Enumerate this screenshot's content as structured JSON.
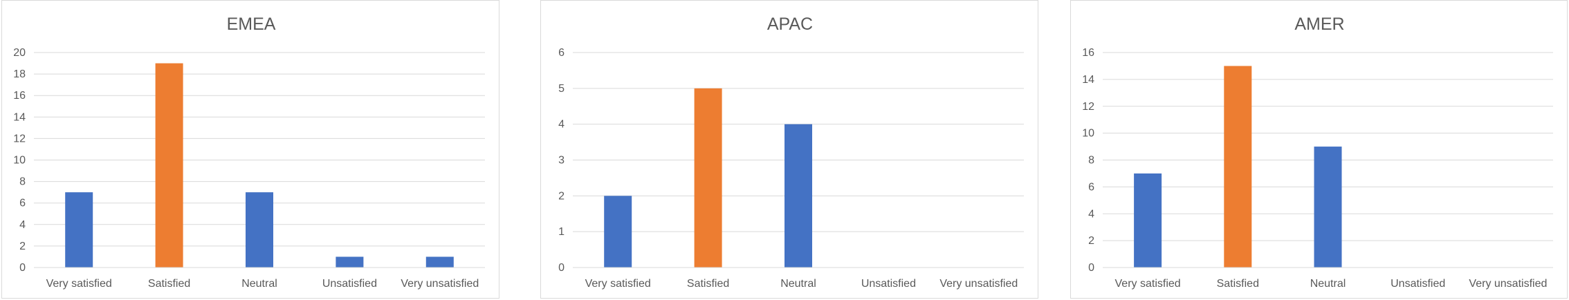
{
  "colors": {
    "default": "#4472c4",
    "highlight": "#ed7d31",
    "grid": "#d9d9d9",
    "text": "#595959"
  },
  "chart_data": [
    {
      "type": "bar",
      "title": "EMEA",
      "categories": [
        "Very satisfied",
        "Satisfied",
        "Neutral",
        "Unsatisfied",
        "Very unsatisfied"
      ],
      "values": [
        7,
        19,
        7,
        1,
        1
      ],
      "highlight_index": 1,
      "ylim": [
        0,
        20
      ],
      "yticks": [
        0,
        2,
        4,
        6,
        8,
        10,
        12,
        14,
        16,
        18,
        20
      ],
      "grid": true
    },
    {
      "type": "bar",
      "title": "APAC",
      "categories": [
        "Very satisfied",
        "Satisfied",
        "Neutral",
        "Unsatisfied",
        "Very unsatisfied"
      ],
      "values": [
        2,
        5,
        4,
        0,
        0
      ],
      "highlight_index": 1,
      "ylim": [
        0,
        6
      ],
      "yticks": [
        0,
        1,
        2,
        3,
        4,
        5,
        6
      ],
      "grid": true
    },
    {
      "type": "bar",
      "title": "AMER",
      "categories": [
        "Very satisfied",
        "Satisfied",
        "Neutral",
        "Unsatisfied",
        "Very unsatisfied"
      ],
      "values": [
        7,
        15,
        9,
        0,
        0
      ],
      "highlight_index": 1,
      "ylim": [
        0,
        16
      ],
      "yticks": [
        0,
        2,
        4,
        6,
        8,
        10,
        12,
        14,
        16
      ],
      "grid": true
    }
  ]
}
